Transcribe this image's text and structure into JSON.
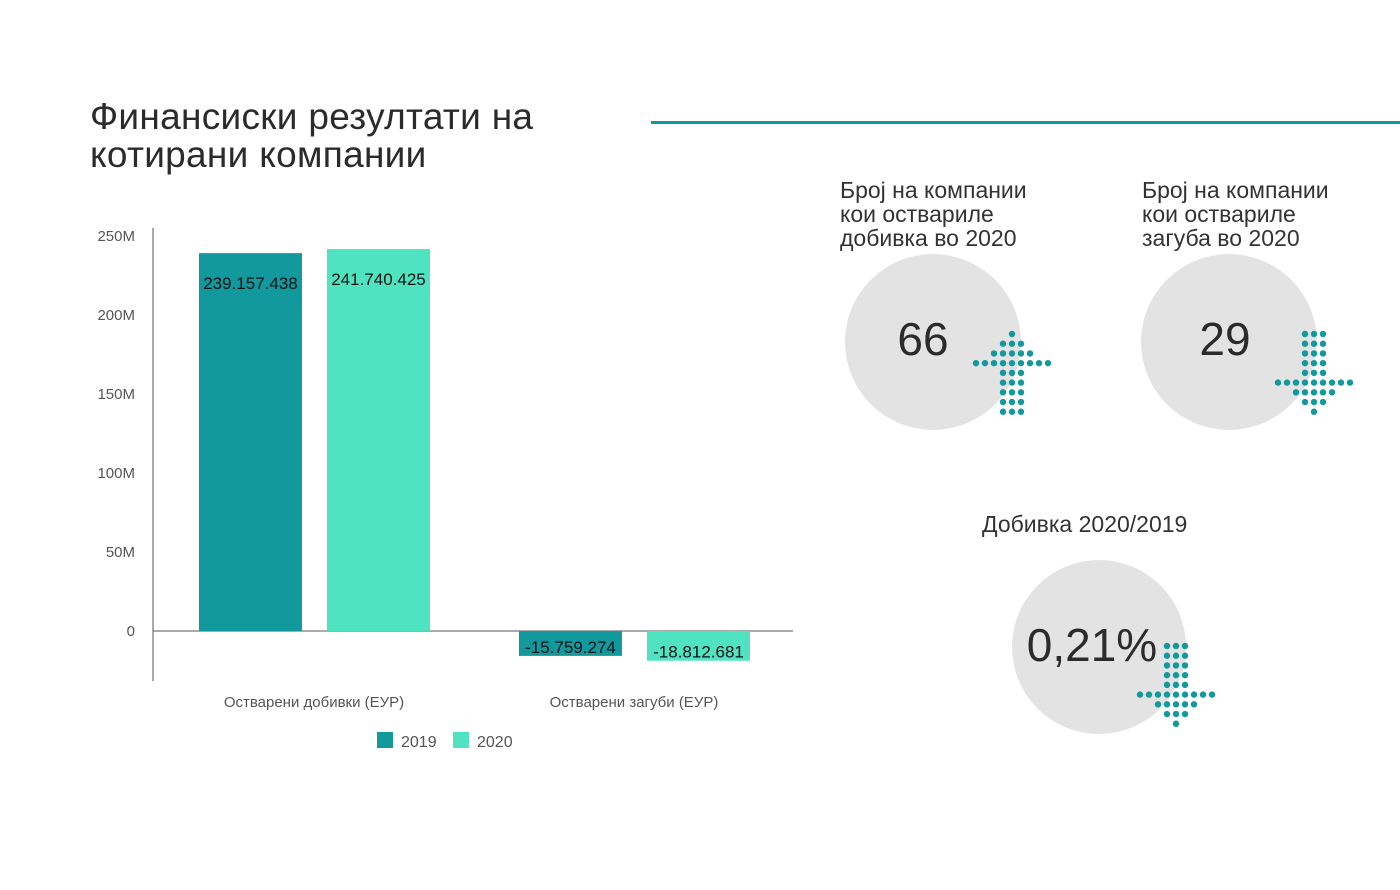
{
  "header": {
    "title_line1": "Финансиски резултати на",
    "title_line2": "котирани компании"
  },
  "colors": {
    "accent": "#11999e",
    "series_2019": "#11999e",
    "series_2020": "#50e3c2",
    "circle_bg": "#e3e3e3",
    "dots": "#11999e"
  },
  "chart_data": {
    "type": "bar",
    "title": "",
    "xlabel": "",
    "ylabel": "",
    "ylim": [
      -30000000,
      250000000
    ],
    "yticks": [
      {
        "value": 0,
        "label": "0"
      },
      {
        "value": 50000000,
        "label": "50M"
      },
      {
        "value": 100000000,
        "label": "100M"
      },
      {
        "value": 150000000,
        "label": "150M"
      },
      {
        "value": 200000000,
        "label": "200M"
      },
      {
        "value": 250000000,
        "label": "250M"
      }
    ],
    "categories": [
      "Остварени добивки (ЕУР)",
      "Остварени загуби (ЕУР)"
    ],
    "series": [
      {
        "name": "2019",
        "values": [
          239157438,
          -15759274
        ],
        "labels": [
          "239.157.438",
          "-15.759.274"
        ]
      },
      {
        "name": "2020",
        "values": [
          241740425,
          -18812681
        ],
        "labels": [
          "241.740.425",
          "-18.812.681"
        ]
      }
    ],
    "legend": [
      "2019",
      "2020"
    ],
    "legend_position": "bottom-center"
  },
  "stats": {
    "profit_label_line1": "Број на компании",
    "profit_label_line2": "кои оствариле",
    "profit_label_line3": "добивка во 2020",
    "profit_value": "66",
    "profit_icon": "dotted-arrow-up-icon",
    "loss_label_line1": "Број на компании",
    "loss_label_line2": "кои оствариле",
    "loss_label_line3": "загуба во 2020",
    "loss_value": "29",
    "loss_icon": "dotted-arrow-down-icon",
    "change_label": "Добивка 2020/2019",
    "change_value": "0,21%",
    "change_icon": "dotted-arrow-down-icon"
  }
}
